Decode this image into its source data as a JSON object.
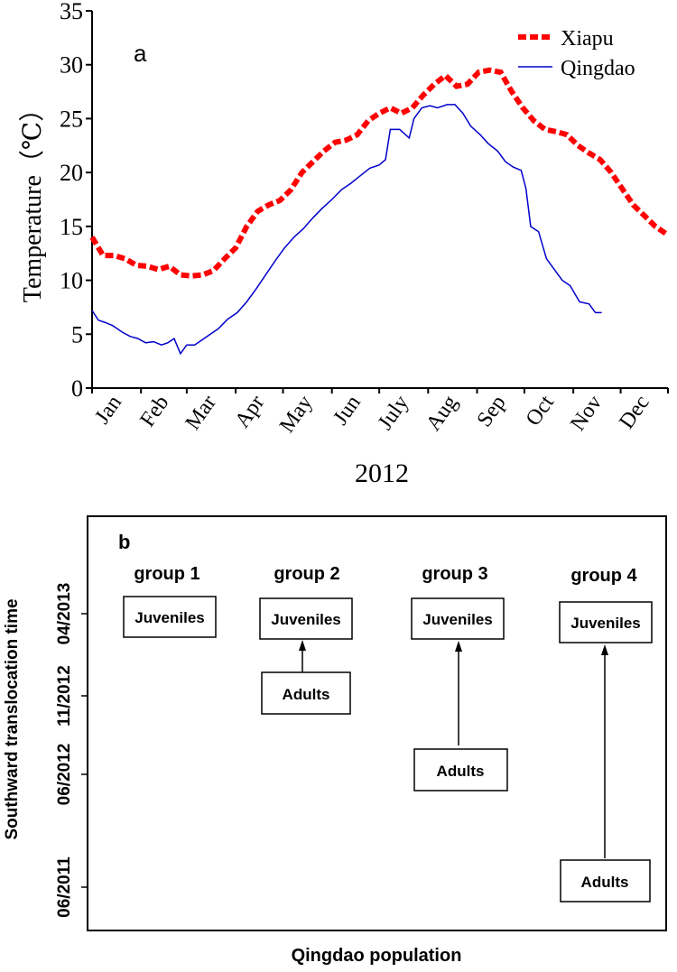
{
  "chart_data": [
    {
      "panel": "a",
      "type": "line",
      "xlabel": "2012",
      "ylabel": "Temperature（℃）",
      "ylim": [
        0,
        35
      ],
      "yticks": [
        0,
        5,
        10,
        15,
        20,
        25,
        30,
        35
      ],
      "month_labels": [
        "Jan",
        "Feb",
        "Mar",
        "Apr",
        "May",
        "Jun",
        "July",
        "Aug",
        "Sep",
        "Oct",
        "Nov",
        "Dec"
      ],
      "x_unit": "day of year 2012",
      "xlim": [
        1,
        366
      ],
      "legend": "top-right",
      "series": [
        {
          "name": "Xiapu",
          "color": "#ff0000",
          "style": "dashed",
          "points": [
            [
              1,
              14.0
            ],
            [
              8,
              12.3
            ],
            [
              15,
              12.3
            ],
            [
              22,
              12.0
            ],
            [
              29,
              11.4
            ],
            [
              36,
              11.3
            ],
            [
              43,
              11.0
            ],
            [
              50,
              11.3
            ],
            [
              57,
              10.5
            ],
            [
              64,
              10.4
            ],
            [
              71,
              10.5
            ],
            [
              78,
              10.9
            ],
            [
              85,
              12.0
            ],
            [
              92,
              13.0
            ],
            [
              99,
              15.0
            ],
            [
              106,
              16.4
            ],
            [
              113,
              17.0
            ],
            [
              120,
              17.4
            ],
            [
              127,
              18.4
            ],
            [
              134,
              20.0
            ],
            [
              141,
              21.0
            ],
            [
              148,
              22.0
            ],
            [
              155,
              22.8
            ],
            [
              162,
              23.0
            ],
            [
              169,
              23.5
            ],
            [
              176,
              24.8
            ],
            [
              183,
              25.5
            ],
            [
              190,
              26.0
            ],
            [
              197,
              25.5
            ],
            [
              204,
              26.0
            ],
            [
              211,
              27.2
            ],
            [
              218,
              28.2
            ],
            [
              225,
              29.0
            ],
            [
              232,
              28.0
            ],
            [
              239,
              28.2
            ],
            [
              246,
              29.3
            ],
            [
              253,
              29.5
            ],
            [
              260,
              29.3
            ],
            [
              267,
              27.5
            ],
            [
              274,
              26.0
            ],
            [
              281,
              24.8
            ],
            [
              288,
              24.0
            ],
            [
              295,
              23.8
            ],
            [
              302,
              23.5
            ],
            [
              309,
              22.5
            ],
            [
              316,
              21.8
            ],
            [
              323,
              21.2
            ],
            [
              330,
              20.0
            ],
            [
              337,
              18.5
            ],
            [
              344,
              17.0
            ],
            [
              351,
              16.0
            ],
            [
              358,
              15.0
            ],
            [
              365,
              14.3
            ]
          ]
        },
        {
          "name": "Qingdao",
          "color": "#0000cc",
          "style": "solid",
          "points": [
            [
              1,
              7.2
            ],
            [
              5,
              6.3
            ],
            [
              9,
              6.1
            ],
            [
              14,
              5.8
            ],
            [
              20,
              5.2
            ],
            [
              25,
              4.8
            ],
            [
              30,
              4.6
            ],
            [
              35,
              4.2
            ],
            [
              40,
              4.3
            ],
            [
              45,
              4.0
            ],
            [
              49,
              4.2
            ],
            [
              53,
              4.6
            ],
            [
              57,
              3.2
            ],
            [
              61,
              4.0
            ],
            [
              66,
              4.0
            ],
            [
              71,
              4.5
            ],
            [
              76,
              5.0
            ],
            [
              81,
              5.5
            ],
            [
              87,
              6.4
            ],
            [
              93,
              7.0
            ],
            [
              99,
              8.0
            ],
            [
              105,
              9.2
            ],
            [
              111,
              10.5
            ],
            [
              117,
              11.8
            ],
            [
              123,
              13.0
            ],
            [
              129,
              14.0
            ],
            [
              135,
              14.8
            ],
            [
              141,
              15.8
            ],
            [
              147,
              16.7
            ],
            [
              153,
              17.5
            ],
            [
              159,
              18.4
            ],
            [
              165,
              19.0
            ],
            [
              171,
              19.7
            ],
            [
              177,
              20.4
            ],
            [
              183,
              20.7
            ],
            [
              187,
              21.2
            ],
            [
              190,
              24.0
            ],
            [
              196,
              24.0
            ],
            [
              202,
              23.2
            ],
            [
              205,
              25.0
            ],
            [
              210,
              26.0
            ],
            [
              215,
              26.2
            ],
            [
              220,
              26.0
            ],
            [
              226,
              26.3
            ],
            [
              231,
              26.3
            ],
            [
              236,
              25.5
            ],
            [
              241,
              24.3
            ],
            [
              247,
              23.5
            ],
            [
              252,
              22.7
            ],
            [
              258,
              22.0
            ],
            [
              263,
              21.0
            ],
            [
              268,
              20.5
            ],
            [
              273,
              20.2
            ],
            [
              276,
              18.5
            ],
            [
              279,
              15.0
            ],
            [
              284,
              14.5
            ],
            [
              289,
              12.0
            ],
            [
              294,
              11.0
            ],
            [
              299,
              10.0
            ],
            [
              304,
              9.5
            ],
            [
              310,
              8.0
            ],
            [
              316,
              7.8
            ],
            [
              320,
              7.0
            ],
            [
              324,
              7.0
            ]
          ]
        }
      ]
    },
    {
      "panel": "b",
      "type": "diagram",
      "xlabel": "Qingdao population",
      "ylabel": "Southward translocation time",
      "y_ticks": [
        "04/2013",
        "11/2012",
        "06/2012",
        "06/2011"
      ],
      "groups": [
        {
          "label": "group 1",
          "juveniles": "Juveniles",
          "adults": null,
          "adults_time": null
        },
        {
          "label": "group 2",
          "juveniles": "Juveniles",
          "adults": "Adults",
          "adults_time": "11/2012"
        },
        {
          "label": "group 3",
          "juveniles": "Juveniles",
          "adults": "Adults",
          "adults_time": "06/2012"
        },
        {
          "label": "group 4",
          "juveniles": "Juveniles",
          "adults": "Adults",
          "adults_time": "06/2011"
        }
      ]
    }
  ]
}
